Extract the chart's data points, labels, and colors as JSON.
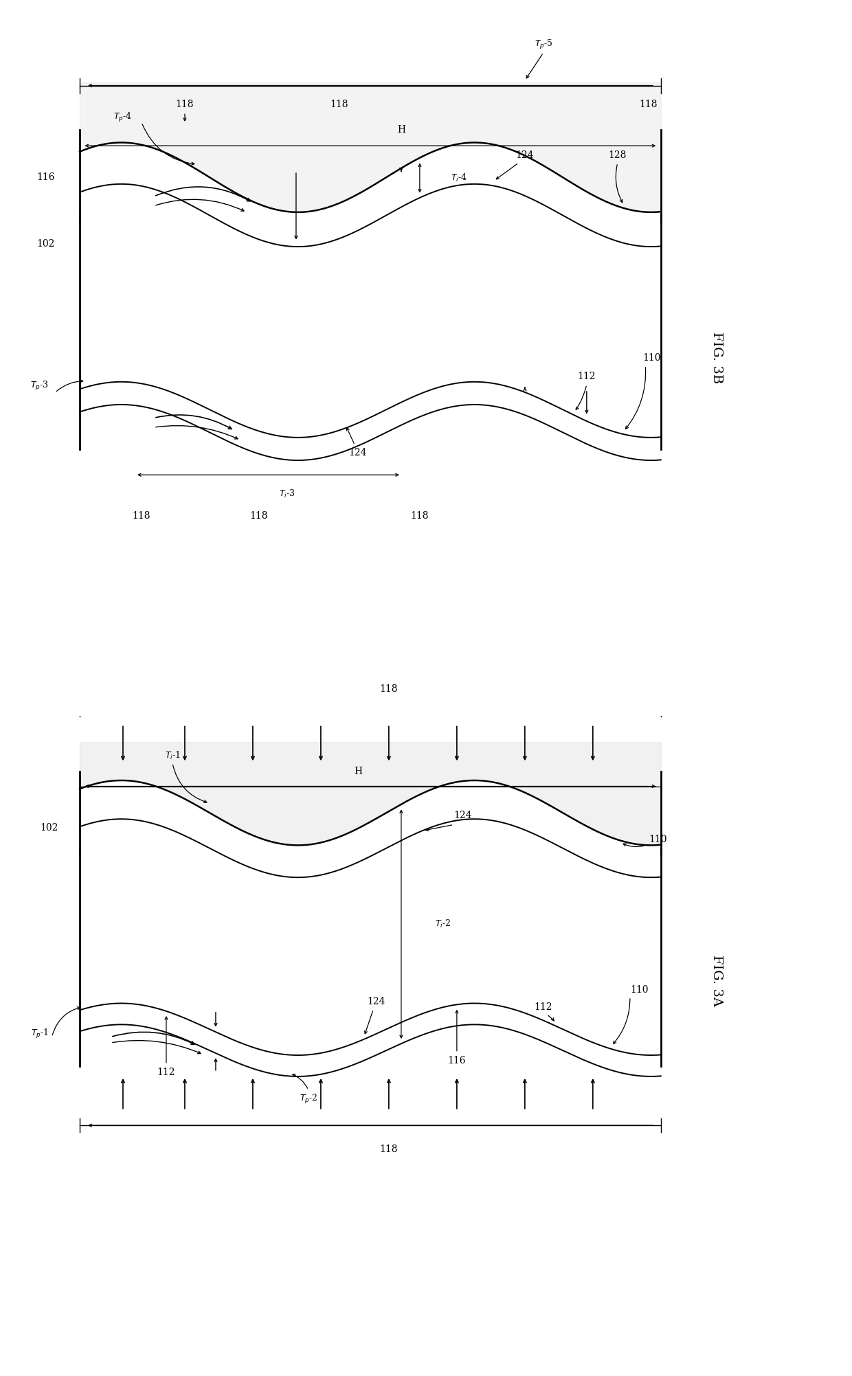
{
  "bg_color": "#ffffff",
  "lc": "#000000",
  "fig3a_label": "FIG. 3A",
  "fig3b_label": "FIG. 3B",
  "lw_main": 1.5,
  "lw_thin": 1.0,
  "fs_label": 10,
  "fs_ref": 9,
  "freq": 1.4,
  "amp": 0.18
}
